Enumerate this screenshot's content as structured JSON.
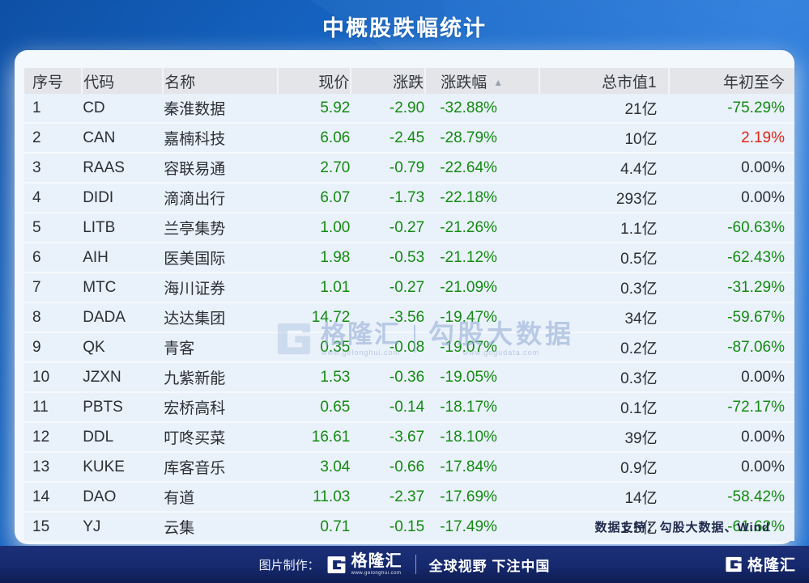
{
  "title": "中概股跌幅统计",
  "table": {
    "sort_icon": "▲",
    "columns": [
      {
        "key": "no",
        "label": "序号"
      },
      {
        "key": "code",
        "label": "代码"
      },
      {
        "key": "name",
        "label": "名称"
      },
      {
        "key": "price",
        "label": "现价"
      },
      {
        "key": "chg",
        "label": "涨跌"
      },
      {
        "key": "pct",
        "label": "涨跌幅",
        "sort": "asc"
      },
      {
        "key": "cap",
        "label": "总市值1"
      },
      {
        "key": "ytd",
        "label": "年初至今"
      }
    ],
    "rows": [
      {
        "no": "1",
        "code": "CD",
        "name": "秦淮数据",
        "price": "5.92",
        "chg": "-2.90",
        "pct": "-32.88%",
        "cap": "21亿",
        "ytd": "-75.29%",
        "ytd_state": "down"
      },
      {
        "no": "2",
        "code": "CAN",
        "name": "嘉楠科技",
        "price": "6.06",
        "chg": "-2.45",
        "pct": "-28.79%",
        "cap": "10亿",
        "ytd": "2.19%",
        "ytd_state": "up"
      },
      {
        "no": "3",
        "code": "RAAS",
        "name": "容联易通",
        "price": "2.70",
        "chg": "-0.79",
        "pct": "-22.64%",
        "cap": "4.4亿",
        "ytd": "0.00%",
        "ytd_state": "flat"
      },
      {
        "no": "4",
        "code": "DIDI",
        "name": "滴滴出行",
        "price": "6.07",
        "chg": "-1.73",
        "pct": "-22.18%",
        "cap": "293亿",
        "ytd": "0.00%",
        "ytd_state": "flat"
      },
      {
        "no": "5",
        "code": "LITB",
        "name": "兰亭集势",
        "price": "1.00",
        "chg": "-0.27",
        "pct": "-21.26%",
        "cap": "1.1亿",
        "ytd": "-60.63%",
        "ytd_state": "down"
      },
      {
        "no": "6",
        "code": "AIH",
        "name": "医美国际",
        "price": "1.98",
        "chg": "-0.53",
        "pct": "-21.12%",
        "cap": "0.5亿",
        "ytd": "-62.43%",
        "ytd_state": "down"
      },
      {
        "no": "7",
        "code": "MTC",
        "name": "海川证券",
        "price": "1.01",
        "chg": "-0.27",
        "pct": "-21.09%",
        "cap": "0.3亿",
        "ytd": "-31.29%",
        "ytd_state": "down"
      },
      {
        "no": "8",
        "code": "DADA",
        "name": "达达集团",
        "price": "14.72",
        "chg": "-3.56",
        "pct": "-19.47%",
        "cap": "34亿",
        "ytd": "-59.67%",
        "ytd_state": "down"
      },
      {
        "no": "9",
        "code": "QK",
        "name": "青客",
        "price": "0.35",
        "chg": "-0.08",
        "pct": "-19.07%",
        "cap": "0.2亿",
        "ytd": "-87.06%",
        "ytd_state": "down"
      },
      {
        "no": "10",
        "code": "JZXN",
        "name": "九紫新能",
        "price": "1.53",
        "chg": "-0.36",
        "pct": "-19.05%",
        "cap": "0.3亿",
        "ytd": "0.00%",
        "ytd_state": "flat"
      },
      {
        "no": "11",
        "code": "PBTS",
        "name": "宏桥高科",
        "price": "0.65",
        "chg": "-0.14",
        "pct": "-18.17%",
        "cap": "0.1亿",
        "ytd": "-72.17%",
        "ytd_state": "down"
      },
      {
        "no": "12",
        "code": "DDL",
        "name": "叮咚买菜",
        "price": "16.61",
        "chg": "-3.67",
        "pct": "-18.10%",
        "cap": "39亿",
        "ytd": "0.00%",
        "ytd_state": "flat"
      },
      {
        "no": "13",
        "code": "KUKE",
        "name": "库客音乐",
        "price": "3.04",
        "chg": "-0.66",
        "pct": "-17.84%",
        "cap": "0.9亿",
        "ytd": "0.00%",
        "ytd_state": "flat"
      },
      {
        "no": "14",
        "code": "DAO",
        "name": "有道",
        "price": "11.03",
        "chg": "-2.37",
        "pct": "-17.69%",
        "cap": "14亿",
        "ytd": "-58.42%",
        "ytd_state": "down"
      },
      {
        "no": "15",
        "code": "YJ",
        "name": "云集",
        "price": "0.71",
        "chg": "-0.15",
        "pct": "-17.49%",
        "cap": "1.5亿",
        "ytd": "-61.62%",
        "ytd_state": "down"
      }
    ]
  },
  "watermark": {
    "brand": "格隆汇",
    "brand_url": "www.gelonghui.com",
    "product": "勾股大数据",
    "product_url": "www.gogudata.com"
  },
  "card_footer": {
    "data_support": "数据支持：勾股大数据、Wind"
  },
  "bottom_bar": {
    "made_by": "图片制作：",
    "brand": "格隆汇",
    "brand_url": "www.gelonghui.com",
    "slogan": "全球视野 下注中国",
    "corner_brand": "格隆汇"
  },
  "colors": {
    "down": "#148A12",
    "up": "#E02518",
    "flat": "#2C2F35",
    "banner_blue": "#1A6FD0",
    "navy": "#16296E"
  }
}
